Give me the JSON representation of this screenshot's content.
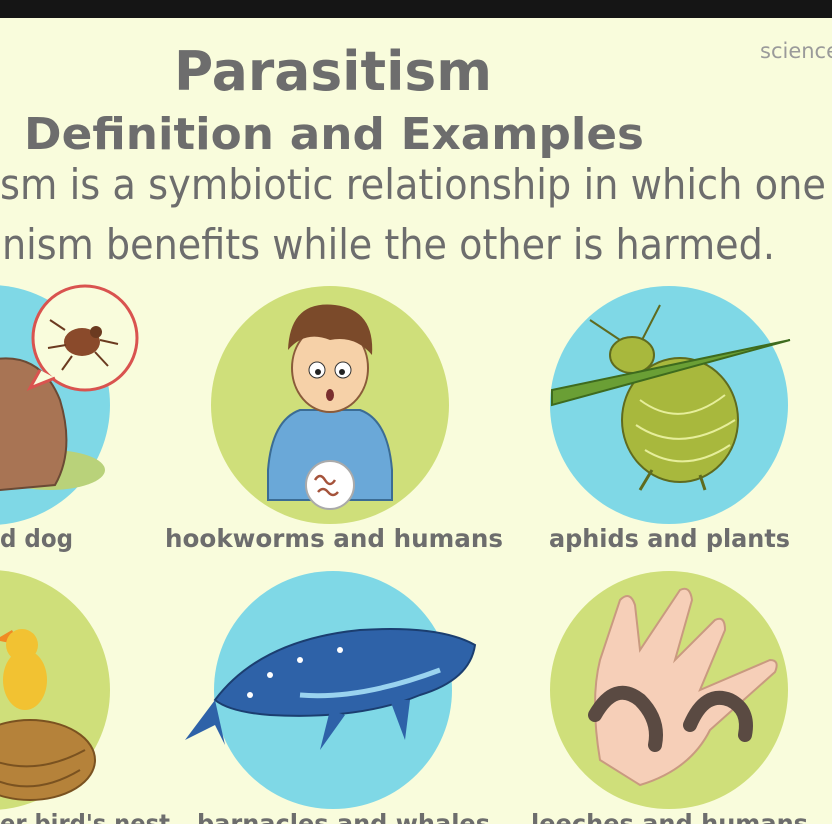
{
  "header": {
    "title": "Parasitism",
    "subtitle": "Definition and Examples",
    "watermark": "science"
  },
  "definition": {
    "lines": [
      "sm is a symbiotic relationship in which one",
      "nism benefits while the other is harmed."
    ]
  },
  "examples": [
    {
      "label": "d dog"
    },
    {
      "label": "hookworms and humans"
    },
    {
      "label": "aphids and plants"
    },
    {
      "label": "er bird's nest"
    },
    {
      "label": "barnacles and whales"
    },
    {
      "label": "leeches and humans"
    }
  ]
}
